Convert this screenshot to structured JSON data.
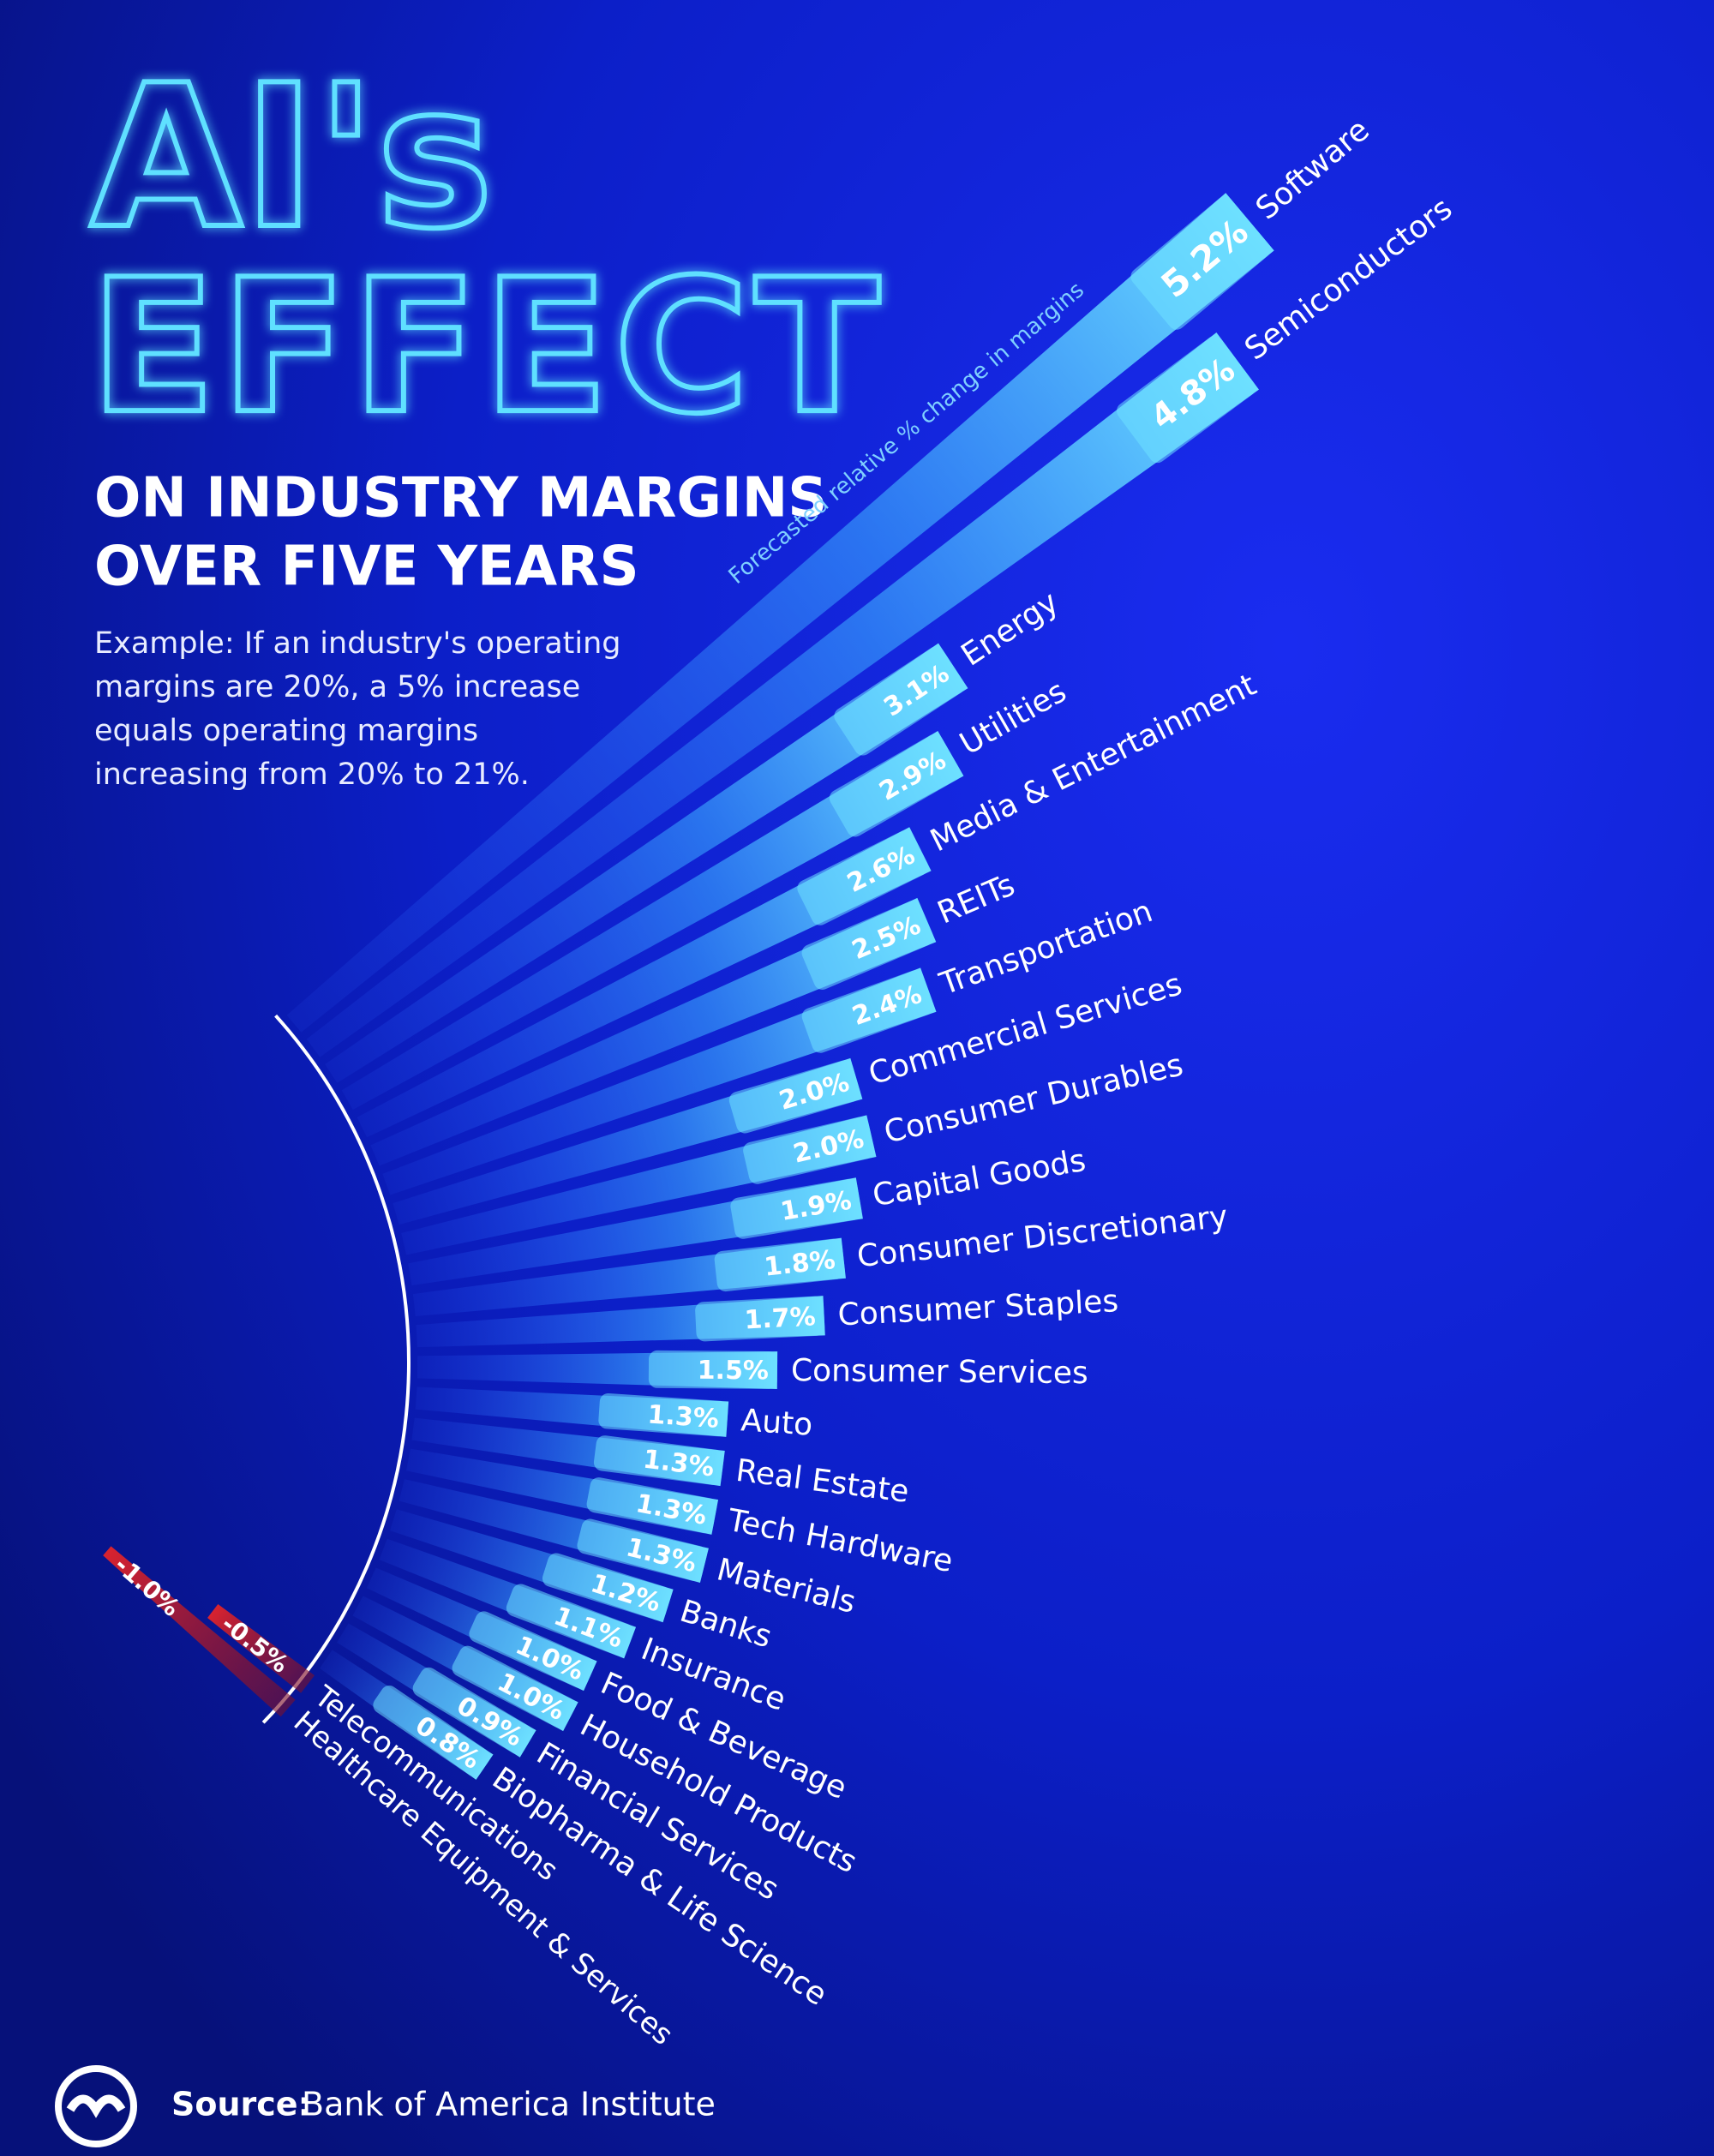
{
  "chart_data": {
    "type": "radial-bar",
    "title": [
      "AI's",
      "EFFECT"
    ],
    "subtitle": [
      "ON INDUSTRY MARGINS",
      "OVER FIVE YEARS"
    ],
    "note": [
      "Example: If an industry's operating",
      "margins are 20%, a 5% increase",
      "equals operating margins",
      "increasing from 20% to 21%."
    ],
    "axis_label": "Forecasted relative % change in margins",
    "categories": [
      "Software",
      "Semiconductors",
      "Energy",
      "Utilities",
      "Media & Entertainment",
      "REITs",
      "Transportation",
      "Commercial Services",
      "Consumer Durables",
      "Capital Goods",
      "Consumer Discretionary",
      "Consumer Staples",
      "Consumer Services",
      "Auto",
      "Real Estate",
      "Tech Hardware",
      "Materials",
      "Banks",
      "Insurance",
      "Food & Beverage",
      "Household Products",
      "Financial Services",
      "Biopharma & Life Science",
      "Telecommunications",
      "Healthcare Equipment & Services"
    ],
    "values": [
      5.2,
      4.8,
      3.1,
      2.9,
      2.6,
      2.5,
      2.4,
      2.0,
      2.0,
      1.9,
      1.8,
      1.7,
      1.5,
      1.3,
      1.3,
      1.3,
      1.3,
      1.2,
      1.1,
      1.0,
      1.0,
      0.9,
      0.8,
      -0.5,
      -1.0
    ],
    "value_labels": [
      "5.2%",
      "4.8%",
      "3.1%",
      "2.9%",
      "2.6%",
      "2.5%",
      "2.4%",
      "2.0%",
      "2.0%",
      "1.9%",
      "1.8%",
      "1.7%",
      "1.5%",
      "1.3%",
      "1.3%",
      "1.3%",
      "1.3%",
      "1.2%",
      "1.1%",
      "1.0%",
      "1.0%",
      "0.9%",
      "0.8%",
      "-0.5%",
      "-1.0%"
    ],
    "color": "#6ee0ff",
    "negative_color": "#d8232f",
    "source_label": "Source:",
    "source": "Bank of America Institute"
  }
}
